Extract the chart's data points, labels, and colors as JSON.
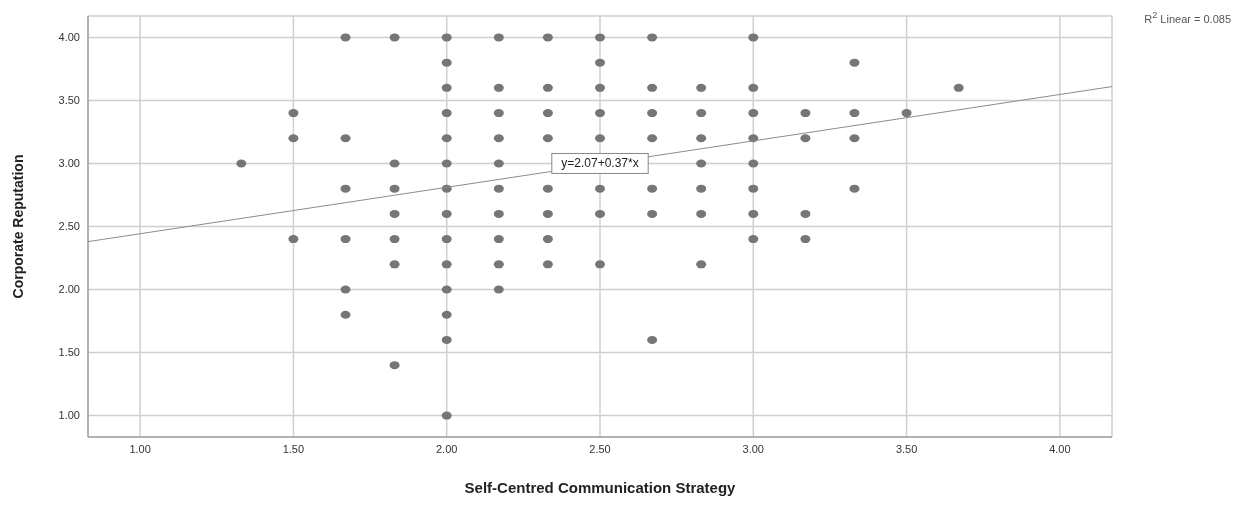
{
  "chart_data": {
    "type": "scatter",
    "xlabel": "Self-Centred Communication Strategy",
    "ylabel": "Corporate Reputation",
    "xlim": [
      0.83,
      4.17
    ],
    "ylim": [
      0.83,
      4.17
    ],
    "xticks": [
      {
        "value": 1,
        "label": "1.00"
      },
      {
        "value": 1.5,
        "label": "1.50"
      },
      {
        "value": 2,
        "label": "2.00"
      },
      {
        "value": 2.5,
        "label": "2.50"
      },
      {
        "value": 3,
        "label": "3.00"
      },
      {
        "value": 3.5,
        "label": "3.50"
      },
      {
        "value": 4,
        "label": "4.00"
      }
    ],
    "yticks": [
      {
        "value": 1,
        "label": "1.00"
      },
      {
        "value": 1.5,
        "label": "1.50"
      },
      {
        "value": 2,
        "label": "2.00"
      },
      {
        "value": 2.5,
        "label": "2.50"
      },
      {
        "value": 3,
        "label": "3.00"
      },
      {
        "value": 3.5,
        "label": "3.50"
      },
      {
        "value": 4,
        "label": "4.00"
      }
    ],
    "grid": true,
    "marker": "circle",
    "annotations": [
      {
        "text": "y=2.07+0.37*x",
        "x": 2.5,
        "y": 3.0
      },
      "R$^{2}$ Linear = 0.085"
    ],
    "series": [
      {
        "color": "#767676",
        "x": [
          1.33,
          1.5,
          1.5,
          1.5,
          1.67,
          1.67,
          1.67,
          1.67,
          1.67,
          1.67,
          1.83,
          1.83,
          1.83,
          1.83,
          1.83,
          1.83,
          1.83,
          2,
          2,
          2,
          2,
          2,
          2,
          2,
          2,
          2,
          2,
          2,
          2,
          2,
          2,
          2.17,
          2.17,
          2.17,
          2.17,
          2.17,
          2.17,
          2.17,
          2.17,
          2.17,
          2.17,
          2.33,
          2.33,
          2.33,
          2.33,
          2.33,
          2.33,
          2.33,
          2.33,
          2.5,
          2.5,
          2.5,
          2.5,
          2.5,
          2.5,
          2.5,
          2.5,
          2.67,
          2.67,
          2.67,
          2.67,
          2.67,
          2.67,
          2.67,
          2.83,
          2.83,
          2.83,
          2.83,
          2.83,
          2.83,
          2.83,
          3,
          3,
          3,
          3,
          3,
          3,
          3,
          3,
          3.17,
          3.17,
          3.17,
          3.17,
          3.33,
          3.33,
          3.33,
          3.33,
          3.5,
          3.67
        ],
        "values": [
          3,
          3.4,
          3.2,
          2.4,
          4,
          3.2,
          2.8,
          2.4,
          2,
          1.8,
          4,
          3,
          2.8,
          2.6,
          2.4,
          2.2,
          1.4,
          4,
          3.8,
          3.6,
          3.4,
          3.2,
          3,
          2.8,
          2.6,
          2.4,
          2.2,
          2,
          1.8,
          1.6,
          1,
          4,
          3.6,
          3.4,
          3.2,
          3,
          2.8,
          2.6,
          2.4,
          2.2,
          2,
          4,
          3.6,
          3.4,
          3.2,
          2.8,
          2.6,
          2.4,
          2.2,
          4,
          3.8,
          3.6,
          3.4,
          3.2,
          2.8,
          2.6,
          2.2,
          4,
          3.6,
          3.4,
          3.2,
          2.8,
          2.6,
          1.6,
          3.6,
          3.4,
          3.2,
          3,
          2.8,
          2.6,
          2.2,
          4,
          3.6,
          3.4,
          3.2,
          3,
          2.8,
          2.6,
          2.4,
          3.4,
          3.2,
          2.6,
          2.4,
          3.8,
          3.4,
          3.2,
          2.8,
          3.4,
          3.6
        ]
      },
      {
        "type": "line",
        "marker": "none",
        "color": "#8c8c8c",
        "x": [
          0.83,
          4.17
        ],
        "values": [
          2.38,
          3.61
        ]
      }
    ]
  }
}
